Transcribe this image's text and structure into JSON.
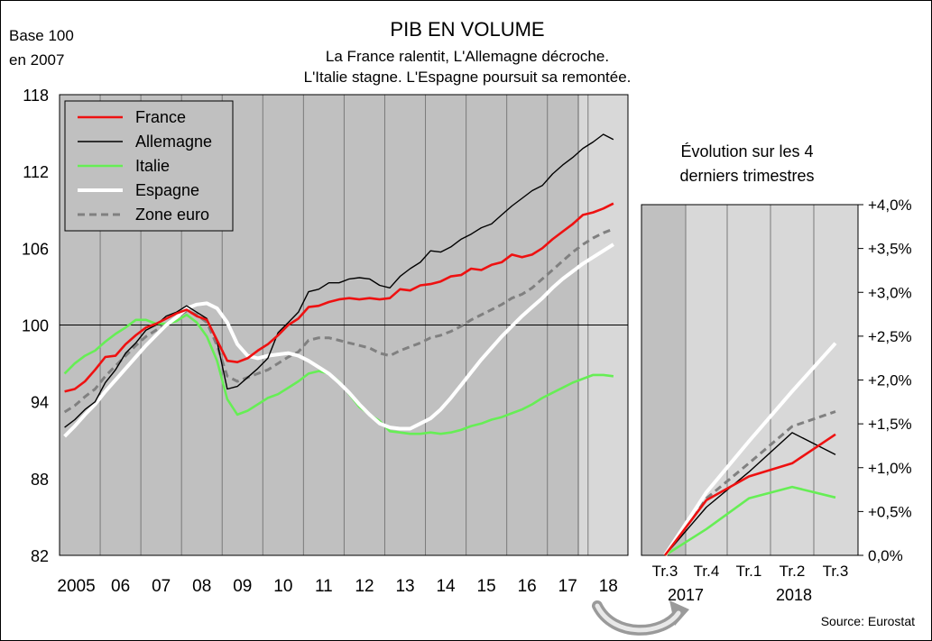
{
  "header": {
    "title": "PIB EN VOLUME",
    "subtitle_line1": "La France ralentit, L'Allemagne décroche.",
    "subtitle_line2": "L'Italie stagne. L'Espagne poursuit sa remontée.",
    "base_line1": "Base 100",
    "base_line2": "en 2007",
    "source": "Source: Eurostat"
  },
  "colors": {
    "France": "#ee1111",
    "Allemagne": "#000000",
    "Italie": "#66ee55",
    "Espagne": "#ffffff",
    "Zone euro": "#808080",
    "plot_bg": "#c0c0c0",
    "shade_bg": "#d8d8d8"
  },
  "chart_data": [
    {
      "type": "line",
      "ylim": [
        82,
        118
      ],
      "yticks": [
        "118",
        "112",
        "106",
        "100",
        "94",
        "88",
        "82"
      ],
      "xticks": [
        "2005",
        "06",
        "07",
        "08",
        "09",
        "10",
        "11",
        "12",
        "13",
        "14",
        "15",
        "16",
        "17",
        "18"
      ],
      "grid": true,
      "legend": "top-left",
      "x": [
        "2005T1",
        "2005T2",
        "2005T3",
        "2005T4",
        "2006T1",
        "2006T2",
        "2006T3",
        "2006T4",
        "2007T1",
        "2007T2",
        "2007T3",
        "2007T4",
        "2008T1",
        "2008T2",
        "2008T3",
        "2008T4",
        "2009T1",
        "2009T2",
        "2009T3",
        "2009T4",
        "2010T1",
        "2010T2",
        "2010T3",
        "2010T4",
        "2011T1",
        "2011T2",
        "2011T3",
        "2011T4",
        "2012T1",
        "2012T2",
        "2012T3",
        "2012T4",
        "2013T1",
        "2013T2",
        "2013T3",
        "2013T4",
        "2014T1",
        "2014T2",
        "2014T3",
        "2014T4",
        "2015T1",
        "2015T2",
        "2015T3",
        "2015T4",
        "2016T1",
        "2016T2",
        "2016T3",
        "2016T4",
        "2017T1",
        "2017T2",
        "2017T3",
        "2017T4",
        "2018T1",
        "2018T2",
        "2018T3"
      ],
      "series": [
        {
          "name": "France",
          "values": [
            94.8,
            95.0,
            95.6,
            96.5,
            97.5,
            97.6,
            98.5,
            99.2,
            99.8,
            100.1,
            100.5,
            100.9,
            101.2,
            100.7,
            100.4,
            98.8,
            97.2,
            97.1,
            97.4,
            98.0,
            98.5,
            99.2,
            100.0,
            100.5,
            101.4,
            101.5,
            101.8,
            102.0,
            102.1,
            102.0,
            102.1,
            102.0,
            102.1,
            102.8,
            102.7,
            103.1,
            103.2,
            103.4,
            103.8,
            103.9,
            104.4,
            104.3,
            104.7,
            104.9,
            105.5,
            105.3,
            105.5,
            106.0,
            106.7,
            107.3,
            107.9,
            108.6,
            108.8,
            109.1,
            109.5
          ]
        },
        {
          "name": "Allemagne",
          "values": [
            92.0,
            92.6,
            93.4,
            94.0,
            95.5,
            96.5,
            97.8,
            98.6,
            99.6,
            100.0,
            100.7,
            101.0,
            101.5,
            101.0,
            100.5,
            98.7,
            95.0,
            95.2,
            95.9,
            96.6,
            97.4,
            99.4,
            100.2,
            101.0,
            102.6,
            102.8,
            103.3,
            103.3,
            103.6,
            103.7,
            103.6,
            103.1,
            102.9,
            103.8,
            104.4,
            104.9,
            105.8,
            105.7,
            106.1,
            106.7,
            107.1,
            107.6,
            107.9,
            108.6,
            109.3,
            109.9,
            110.5,
            110.9,
            111.8,
            112.5,
            113.1,
            113.8,
            114.3,
            114.9,
            114.5
          ]
        },
        {
          "name": "Italie",
          "values": [
            96.2,
            97.0,
            97.6,
            98.0,
            98.7,
            99.3,
            99.8,
            100.4,
            100.4,
            100.1,
            100.1,
            100.3,
            100.8,
            100.2,
            99.1,
            97.2,
            94.2,
            93.0,
            93.3,
            93.8,
            94.3,
            94.6,
            95.1,
            95.6,
            96.2,
            96.4,
            96.2,
            95.6,
            94.6,
            93.6,
            93.0,
            92.5,
            91.7,
            91.6,
            91.5,
            91.5,
            91.6,
            91.5,
            91.6,
            91.8,
            92.1,
            92.3,
            92.6,
            92.8,
            93.1,
            93.4,
            93.8,
            94.3,
            94.7,
            95.1,
            95.5,
            95.8,
            96.1,
            96.1,
            96.0
          ]
        },
        {
          "name": "Espagne",
          "values": [
            91.3,
            92.1,
            93.0,
            93.8,
            94.8,
            95.7,
            96.6,
            97.5,
            98.4,
            99.2,
            100.0,
            100.6,
            101.3,
            101.6,
            101.7,
            101.3,
            100.2,
            98.5,
            97.6,
            97.4,
            97.6,
            97.7,
            97.8,
            97.6,
            97.2,
            96.7,
            96.2,
            95.5,
            94.7,
            93.8,
            93.0,
            92.3,
            92.0,
            91.9,
            91.9,
            92.3,
            92.7,
            93.4,
            94.3,
            95.3,
            96.3,
            97.3,
            98.2,
            99.1,
            99.9,
            100.7,
            101.4,
            102.1,
            102.9,
            103.6,
            104.2,
            104.8,
            105.3,
            105.8,
            106.3
          ]
        },
        {
          "name": "Zone euro",
          "values": [
            93.2,
            93.7,
            94.4,
            95.0,
            96.0,
            96.8,
            97.6,
            98.4,
            99.1,
            99.6,
            100.1,
            100.6,
            101.1,
            100.8,
            100.2,
            98.4,
            96.0,
            95.6,
            95.9,
            96.2,
            96.5,
            97.0,
            97.5,
            97.9,
            98.8,
            99.0,
            99.0,
            98.8,
            98.6,
            98.4,
            98.2,
            97.8,
            97.6,
            98.0,
            98.3,
            98.6,
            99.0,
            99.2,
            99.5,
            99.9,
            100.4,
            100.8,
            101.2,
            101.6,
            102.1,
            102.4,
            102.9,
            103.6,
            104.3,
            105.0,
            105.7,
            106.3,
            106.8,
            107.2,
            107.5
          ]
        }
      ]
    },
    {
      "type": "line",
      "title": "Évolution sur les 4 derniers trimestres",
      "categories": [
        "Tr.3",
        "Tr.4",
        "Tr.1",
        "Tr.2",
        "Tr.3"
      ],
      "year_labels": [
        "2017",
        "2018"
      ],
      "ylim": [
        0,
        4.0
      ],
      "yticks": [
        "+4,0%",
        "+3,5%",
        "+3,0%",
        "+2,5%",
        "+2,0%",
        "+1,5%",
        "+1,0%",
        "+0,5%",
        "0,0%"
      ],
      "series": [
        {
          "name": "France",
          "values": [
            0,
            0.63,
            0.9,
            1.05,
            1.38
          ]
        },
        {
          "name": "Allemagne",
          "values": [
            0,
            0.55,
            0.95,
            1.4,
            1.15
          ]
        },
        {
          "name": "Italie",
          "values": [
            0,
            0.3,
            0.65,
            0.78,
            0.66
          ]
        },
        {
          "name": "Espagne",
          "values": [
            0,
            0.72,
            1.3,
            1.87,
            2.42
          ]
        },
        {
          "name": "Zone euro",
          "values": [
            0,
            0.65,
            1.05,
            1.47,
            1.64
          ]
        }
      ]
    }
  ]
}
